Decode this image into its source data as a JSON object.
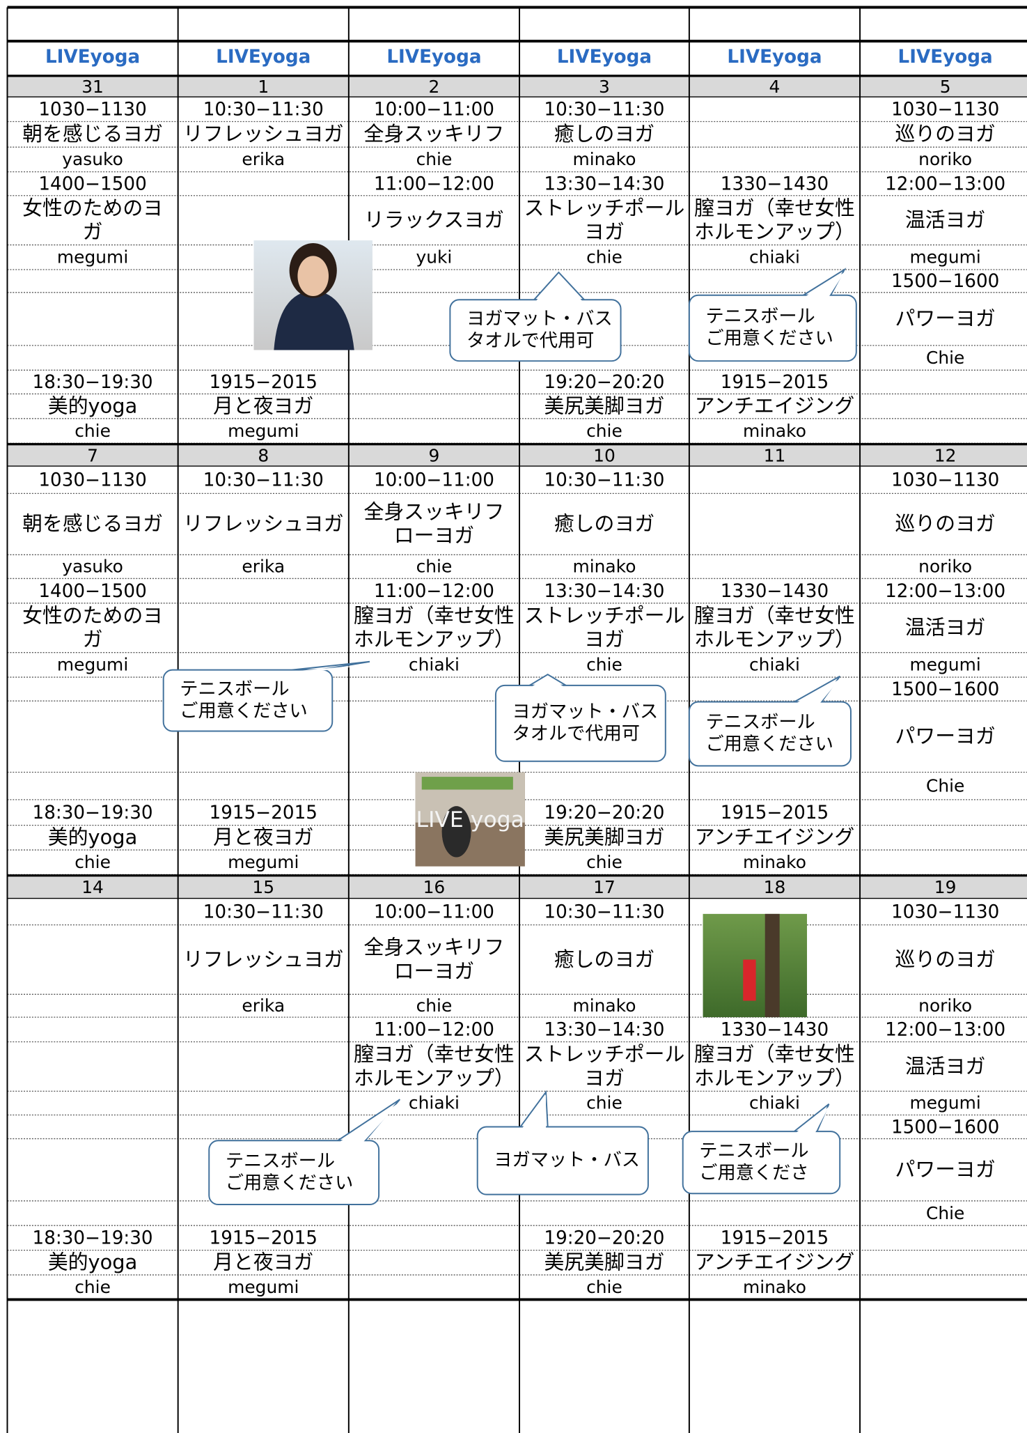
{
  "header": {
    "columns": [
      "LIVEyoga",
      "LIVEyoga",
      "LIVEyoga",
      "LIVEyoga",
      "LIVEyoga",
      "LIVEyoga"
    ]
  },
  "weeks": [
    {
      "dates": [
        "31",
        "1",
        "2",
        "3",
        "4",
        "5"
      ],
      "columns": [
        [
          {
            "time": "1030−1130",
            "class": [
              "朝を感じるヨガ"
            ],
            "teacher": "yasuko"
          },
          {
            "time": "1400−1500",
            "class": [
              "女性のためのヨ",
              "ガ"
            ],
            "teacher": "megumi"
          },
          null,
          {
            "time": "18:30−19:30",
            "class": [
              "美的yoga"
            ],
            "teacher": "chie"
          }
        ],
        [
          {
            "time": "10:30−11:30",
            "class": [
              "リフレッシュヨガ"
            ],
            "teacher": "erika"
          },
          null,
          null,
          {
            "time": "1915−2015",
            "class": [
              "月と夜ヨガ"
            ],
            "teacher": "megumi"
          }
        ],
        [
          {
            "time": "10:00−11:00",
            "class": [
              "全身スッキリフ"
            ],
            "teacher": "chie"
          },
          {
            "time": "11:00−12:00",
            "class": [
              "リラックスヨガ"
            ],
            "teacher": "yuki"
          },
          null,
          null
        ],
        [
          {
            "time": "10:30−11:30",
            "class": [
              "癒しのヨガ"
            ],
            "teacher": "minako"
          },
          {
            "time": "13:30−14:30",
            "class": [
              "ストレッチポール",
              "ヨガ"
            ],
            "teacher": "chie"
          },
          null,
          {
            "time": "19:20−20:20",
            "class": [
              "美尻美脚ヨガ"
            ],
            "teacher": "chie"
          }
        ],
        [
          null,
          {
            "time": "1330−1430",
            "class": [
              "膣ヨガ（幸せ女性",
              "ホルモンアップ）"
            ],
            "teacher": "chiaki"
          },
          null,
          {
            "time": "1915−2015",
            "class": [
              "アンチエイジング"
            ],
            "teacher": "minako"
          }
        ],
        [
          {
            "time": "1030−1130",
            "class": [
              "巡りのヨガ"
            ],
            "teacher": "noriko"
          },
          {
            "time": "12:00−13:00",
            "class": [
              "温活ヨガ"
            ],
            "teacher": "megumi"
          },
          {
            "time": "1500−1600",
            "class": [
              "パワーヨガ"
            ],
            "teacher": "Chie"
          },
          null
        ]
      ]
    },
    {
      "dates": [
        "7",
        "8",
        "9",
        "10",
        "11",
        "12"
      ],
      "columns": [
        [
          {
            "time": "1030−1130",
            "class": [
              "朝を感じるヨガ"
            ],
            "teacher": "yasuko"
          },
          {
            "time": "1400−1500",
            "class": [
              "女性のためのヨ",
              "ガ"
            ],
            "teacher": "megumi"
          },
          null,
          {
            "time": "18:30−19:30",
            "class": [
              "美的yoga"
            ],
            "teacher": "chie"
          }
        ],
        [
          {
            "time": "10:30−11:30",
            "class": [
              "リフレッシュヨガ"
            ],
            "teacher": "erika"
          },
          null,
          null,
          {
            "time": "1915−2015",
            "class": [
              "月と夜ヨガ"
            ],
            "teacher": "megumi"
          }
        ],
        [
          {
            "time": "10:00−11:00",
            "class": [
              "全身スッキリフ",
              "ローヨガ"
            ],
            "teacher": "chie"
          },
          {
            "time": "11:00−12:00",
            "class": [
              "膣ヨガ（幸せ女性",
              "ホルモンアップ）"
            ],
            "teacher": "chiaki"
          },
          null,
          null
        ],
        [
          {
            "time": "10:30−11:30",
            "class": [
              "癒しのヨガ"
            ],
            "teacher": "minako"
          },
          {
            "time": "13:30−14:30",
            "class": [
              "ストレッチポール",
              "ヨガ"
            ],
            "teacher": "chie"
          },
          null,
          {
            "time": "19:20−20:20",
            "class": [
              "美尻美脚ヨガ"
            ],
            "teacher": "chie"
          }
        ],
        [
          null,
          {
            "time": "1330−1430",
            "class": [
              "膣ヨガ（幸せ女性",
              "ホルモンアップ）"
            ],
            "teacher": "chiaki"
          },
          null,
          {
            "time": "1915−2015",
            "class": [
              "アンチエイジング"
            ],
            "teacher": "minako"
          }
        ],
        [
          {
            "time": "1030−1130",
            "class": [
              "巡りのヨガ"
            ],
            "teacher": "noriko"
          },
          {
            "time": "12:00−13:00",
            "class": [
              "温活ヨガ"
            ],
            "teacher": "megumi"
          },
          {
            "time": "1500−1600",
            "class": [
              "パワーヨガ"
            ],
            "teacher": "Chie"
          },
          null
        ]
      ]
    },
    {
      "dates": [
        "14",
        "15",
        "16",
        "17",
        "18",
        "19"
      ],
      "columns": [
        [
          null,
          null,
          null,
          {
            "time": "18:30−19:30",
            "class": [
              "美的yoga"
            ],
            "teacher": "chie"
          }
        ],
        [
          {
            "time": "10:30−11:30",
            "class": [
              "リフレッシュヨガ"
            ],
            "teacher": "erika"
          },
          null,
          null,
          {
            "time": "1915−2015",
            "class": [
              "月と夜ヨガ"
            ],
            "teacher": "megumi"
          }
        ],
        [
          {
            "time": "10:00−11:00",
            "class": [
              "全身スッキリフ",
              "ローヨガ"
            ],
            "teacher": "chie"
          },
          {
            "time": "11:00−12:00",
            "class": [
              "膣ヨガ（幸せ女性",
              "ホルモンアップ）"
            ],
            "teacher": "chiaki"
          },
          null,
          null
        ],
        [
          {
            "time": "10:30−11:30",
            "class": [
              "癒しのヨガ"
            ],
            "teacher": "minako"
          },
          {
            "time": "13:30−14:30",
            "class": [
              "ストレッチポール",
              "ヨガ"
            ],
            "teacher": "chie"
          },
          null,
          {
            "time": "19:20−20:20",
            "class": [
              "美尻美脚ヨガ"
            ],
            "teacher": "chie"
          }
        ],
        [
          null,
          {
            "time": "1330−1430",
            "class": [
              "膣ヨガ（幸せ女性",
              "ホルモンアップ）"
            ],
            "teacher": "chiaki"
          },
          null,
          {
            "time": "1915−2015",
            "class": [
              "アンチエイジング"
            ],
            "teacher": "minako"
          }
        ],
        [
          {
            "time": "1030−1130",
            "class": [
              "巡りのヨガ"
            ],
            "teacher": "noriko"
          },
          {
            "time": "12:00−13:00",
            "class": [
              "温活ヨガ"
            ],
            "teacher": "megumi"
          },
          {
            "time": "1500−1600",
            "class": [
              "パワーヨガ"
            ],
            "teacher": "Chie"
          },
          null
        ]
      ]
    }
  ],
  "callouts": [
    {
      "lines": [
        "ヨガマット・バス",
        "タオルで代用可"
      ]
    },
    {
      "lines": [
        "テニスボール",
        "ご用意ください"
      ]
    },
    {
      "lines": [
        "テニスボール",
        "ご用意ください"
      ]
    },
    {
      "lines": [
        "ヨガマット・バス",
        "タオルで代用可"
      ]
    },
    {
      "lines": [
        "テニスボール",
        "ご用意ください"
      ]
    },
    {
      "lines": [
        "テニスボール",
        "ご用意ください"
      ]
    },
    {
      "lines": [
        "ヨガマット・バス"
      ]
    },
    {
      "lines": [
        "テニスボール",
        "ご用意くださ"
      ]
    }
  ],
  "photo_caption": "LIVE yoga"
}
